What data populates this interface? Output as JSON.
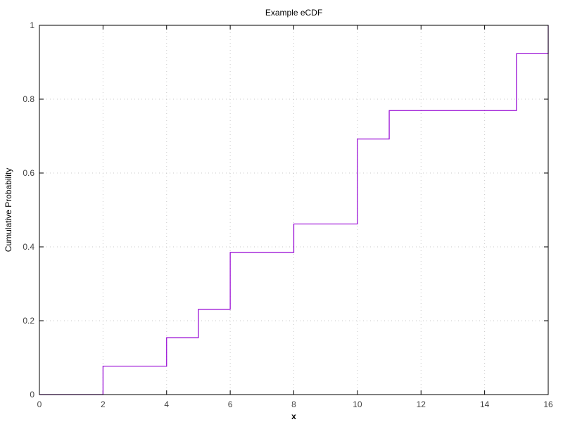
{
  "chart_data": {
    "type": "line",
    "step": "post",
    "title": "Example eCDF",
    "xlabel": "x",
    "ylabel": "Cumulative Probability",
    "xlim": [
      0,
      16
    ],
    "ylim": [
      0,
      1
    ],
    "xticks": [
      0,
      2,
      4,
      6,
      8,
      10,
      12,
      14,
      16
    ],
    "yticks": [
      0,
      0.2,
      0.4,
      0.6,
      0.8,
      1
    ],
    "ytick_labels": [
      "0",
      "0.2",
      "0.4",
      "0.6",
      "0.8",
      "1"
    ],
    "grid": true,
    "series": [
      {
        "color": "#9400d3",
        "x": [
          0,
          2,
          4,
          5,
          6,
          8,
          10,
          11,
          15,
          16
        ],
        "y": [
          0,
          0.077,
          0.154,
          0.231,
          0.385,
          0.462,
          0.692,
          0.769,
          0.923,
          1.0
        ]
      }
    ]
  }
}
